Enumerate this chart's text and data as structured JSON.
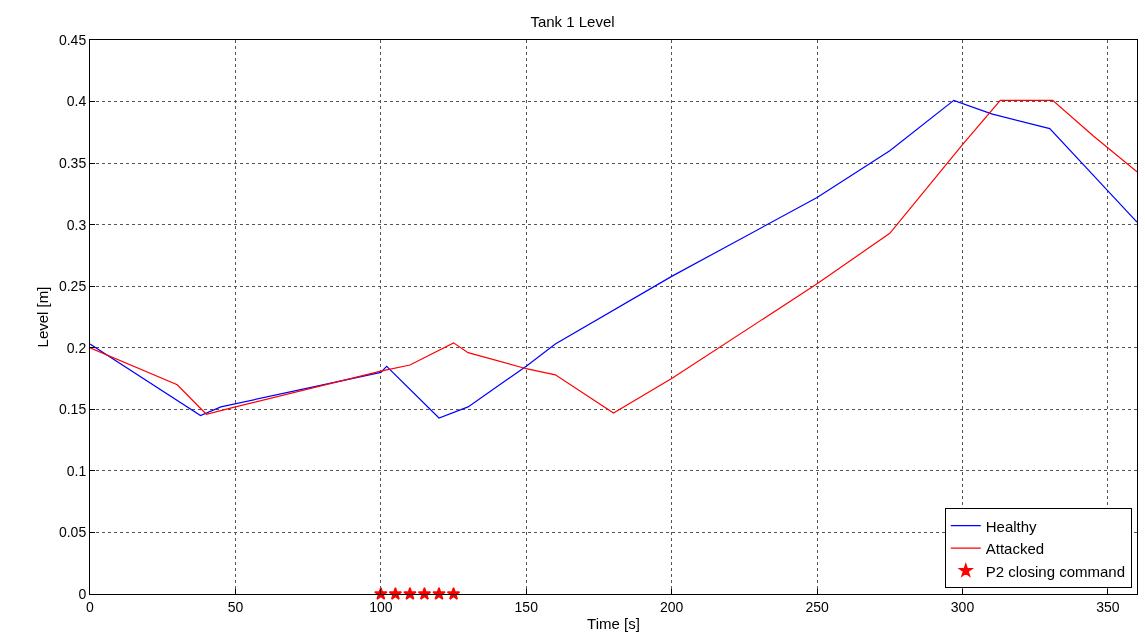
{
  "chart_data": {
    "type": "line",
    "title": "Tank 1 Level",
    "xlabel": "Time [s]",
    "ylabel": "Level [m]",
    "xlim": [
      0,
      360
    ],
    "xticks": [
      0,
      50,
      100,
      150,
      200,
      250,
      300,
      350
    ],
    "ylim": [
      0,
      0.45
    ],
    "yticks": [
      0,
      0.05,
      0.1,
      0.15,
      0.2,
      0.25,
      0.3,
      0.35,
      0.4,
      0.45
    ],
    "grid": true,
    "legend": "bottom right",
    "series": [
      {
        "name": "Healthy",
        "color": "#0000ff",
        "marker": "none",
        "x": [
          0,
          38,
          45,
          100,
          102,
          120,
          130,
          150,
          160,
          200,
          250,
          275,
          297,
          310,
          330,
          345,
          360
        ],
        "values": [
          0.203,
          0.145,
          0.152,
          0.18,
          0.185,
          0.143,
          0.152,
          0.185,
          0.203,
          0.258,
          0.322,
          0.36,
          0.401,
          0.39,
          0.378,
          0.34,
          0.302
        ]
      },
      {
        "name": "Attacked",
        "color": "#ff0000",
        "marker": "none",
        "x": [
          0,
          30,
          40,
          50,
          100,
          110,
          125,
          130,
          150,
          160,
          180,
          200,
          250,
          275,
          300,
          313,
          331,
          345,
          360
        ],
        "values": [
          0.2,
          0.17,
          0.146,
          0.152,
          0.181,
          0.186,
          0.204,
          0.196,
          0.183,
          0.178,
          0.147,
          0.175,
          0.252,
          0.293,
          0.365,
          0.401,
          0.401,
          0.372,
          0.343
        ]
      },
      {
        "name": "P2 closing command",
        "type": "scatter",
        "color": "#ff0000",
        "marker": "star",
        "x": [
          100,
          105,
          110,
          115,
          120,
          125
        ],
        "values": [
          0,
          0,
          0,
          0,
          0,
          0
        ]
      }
    ]
  }
}
